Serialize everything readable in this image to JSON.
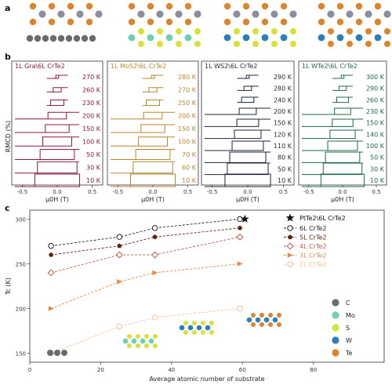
{
  "figure": {
    "panel_a_label": "a",
    "panel_b_label": "b",
    "panel_c_label": "c"
  },
  "panel_b": {
    "ylabel": "RMCD (%)",
    "xlabel_html": "μ0H (T)",
    "xticks": [
      "-0.5",
      "0.0",
      "0.5"
    ],
    "subpanels": [
      {
        "title": "1L Gra\\6L CrTe2",
        "color": "#8c1a3a",
        "temps": [
          "270 K",
          "260 K",
          "230 K",
          "200 K",
          "150 K",
          "100 K",
          "50 K",
          "30 K",
          "10 K"
        ]
      },
      {
        "title": "1L MoS2\\6L CrTe2",
        "color": "#b8862e",
        "temps": [
          "280 K",
          "270 K",
          "250 K",
          "200 K",
          "150 K",
          "100 K",
          "70 K",
          "60 K",
          "10 K"
        ]
      },
      {
        "title": "1L WS2\\6L CrTe2",
        "color": "#1e2535",
        "temps": [
          "290 K",
          "280 K",
          "240 K",
          "200 K",
          "150 K",
          "120 K",
          "110 K",
          "80 K",
          "50 K",
          "10 K"
        ]
      },
      {
        "title": "1L WTe2\\6L CrTe2",
        "color": "#1f6b45",
        "temps": [
          "300 K",
          "290 K",
          "260 K",
          "230 K",
          "150 K",
          "140 K",
          "100 K",
          "50 K",
          "30 K",
          "10 K"
        ]
      }
    ]
  },
  "panel_c": {
    "ylabel": "Tc (K)",
    "xlabel": "Average atomic number of substrate",
    "legend_heterostructure": "PtTe2\\6L CrTe2",
    "atom_legend": [
      {
        "name": "C",
        "color": "#6b6b6b"
      },
      {
        "name": "Mo",
        "color": "#6fcfb0"
      },
      {
        "name": "S",
        "color": "#d8e03a"
      },
      {
        "name": "W",
        "color": "#2c7fb8"
      },
      {
        "name": "Te",
        "color": "#d9862e"
      }
    ]
  },
  "chart_data": {
    "type": "scatter",
    "title": "",
    "xlabel": "Average atomic number of substrate",
    "ylabel": "Tc (K)",
    "xlim": [
      0,
      100
    ],
    "ylim": [
      140,
      310
    ],
    "xticks": [
      0,
      20,
      40,
      60,
      80
    ],
    "yticks": [
      150,
      200,
      250,
      300
    ],
    "x": [
      6,
      25.3,
      35.3,
      59.3
    ],
    "series": [
      {
        "name": "6L CrTe2",
        "values": [
          270,
          280,
          290,
          300
        ],
        "color": "#222222",
        "marker": "circle-open"
      },
      {
        "name": "5L CrTe2",
        "values": [
          260,
          270,
          280,
          290
        ],
        "color": "#5a2410",
        "marker": "pentagon"
      },
      {
        "name": "4L CrTe2",
        "values": [
          240,
          260,
          260,
          280
        ],
        "color": "#c05a50",
        "marker": "diamond-open"
      },
      {
        "name": "3L CrTe2",
        "values": [
          200,
          230,
          240,
          250
        ],
        "color": "#e8894a",
        "marker": "triangle"
      },
      {
        "name": "2L CrTe2",
        "values": [
          150,
          180,
          190,
          200
        ],
        "color": "#f4c0a0",
        "marker": "circle-open"
      }
    ],
    "extra_point": {
      "name": "PtTe2\\6L CrTe2",
      "x": 60.7,
      "y": 300,
      "marker": "star"
    }
  }
}
